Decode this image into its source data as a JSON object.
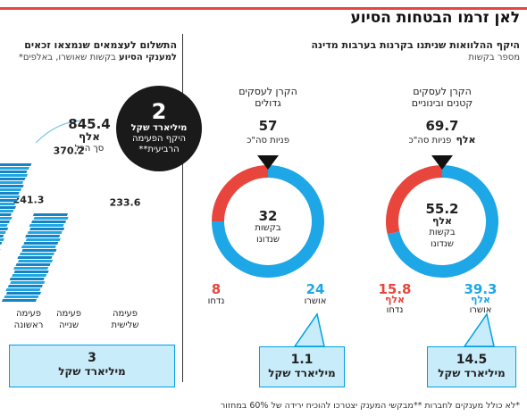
{
  "title": "לאן זרמו הבטחות הסיוע",
  "colors": {
    "accent": "#e8463c",
    "blue": "#1ea7e6",
    "dark": "#222222",
    "callout": "#c9ecfb"
  },
  "left_section": {
    "title": "היקף ההלוואות שניתנו בקרנות בערבות מדינה",
    "subtitle": "מספר בקשות"
  },
  "right_section": {
    "title": "התשלום לעצמאים שנמצאו זכאים",
    "title2": "למענקי הסיוע",
    "subtitle": "בקשות שאושרו, באלפים*"
  },
  "footnote": "*לא כולל מענקים לחברות **מבקשי המענק יצטרכו להוכיח ירידה של 60% במחזור",
  "badge": {
    "value": "2",
    "line1": "מיליארד שקל",
    "line2": "היקף הפעימה",
    "line3": "הרביעית**"
  },
  "chart_data": [
    {
      "type": "pie",
      "name": "הקרן לעסקים קטנים ובינוניים",
      "title_line1": "הקרן לעסקים",
      "title_line2": "קטנים ובינוניים",
      "inquiries_value": "69.7",
      "inquiries_unit": "אלף",
      "inquiries_label": "פניות סה\"כ",
      "center_value": "55.2",
      "center_unit": "אלף",
      "center_label1": "בקשות",
      "center_label2": "שנדונו",
      "slices": [
        {
          "label": "אושרו",
          "value": 39.3,
          "display": "39.3",
          "unit": "אלף",
          "color": "#1ea7e6"
        },
        {
          "label": "נדחו",
          "value": 15.8,
          "display": "15.8",
          "unit": "אלף",
          "color": "#e8463c"
        }
      ],
      "callout_value": "14.5",
      "callout_unit": "מיליארד שקל"
    },
    {
      "type": "pie",
      "name": "הקרן לעסקים גדולים",
      "title_line1": "הקרן לעסקים",
      "title_line2": "גדולים",
      "inquiries_value": "57",
      "inquiries_label": "פניות סה\"כ",
      "center_value": "32",
      "center_label1": "בקשות",
      "center_label2": "שנדונו",
      "slices": [
        {
          "label": "אושרו",
          "value": 24,
          "display": "24",
          "color": "#1ea7e6"
        },
        {
          "label": "נדחו",
          "value": 8,
          "display": "8",
          "color": "#e8463c"
        }
      ],
      "callout_value": "1.1",
      "callout_unit": "מיליארד שקל"
    },
    {
      "type": "bar",
      "total_value": "845.4",
      "total_unit": "אלף",
      "total_label": "סך הכל",
      "categories": [
        "פעימה ראשונה",
        "פעימה שנייה",
        "פעימה שלישית"
      ],
      "category_lines": [
        [
          "פעימה",
          "ראשונה"
        ],
        [
          "פעימה",
          "שנייה"
        ],
        [
          "פעימה",
          "שלישית"
        ]
      ],
      "values": [
        241.3,
        370.2,
        233.6
      ],
      "callout_value": "3",
      "callout_unit": "מיליארד שקל"
    }
  ]
}
